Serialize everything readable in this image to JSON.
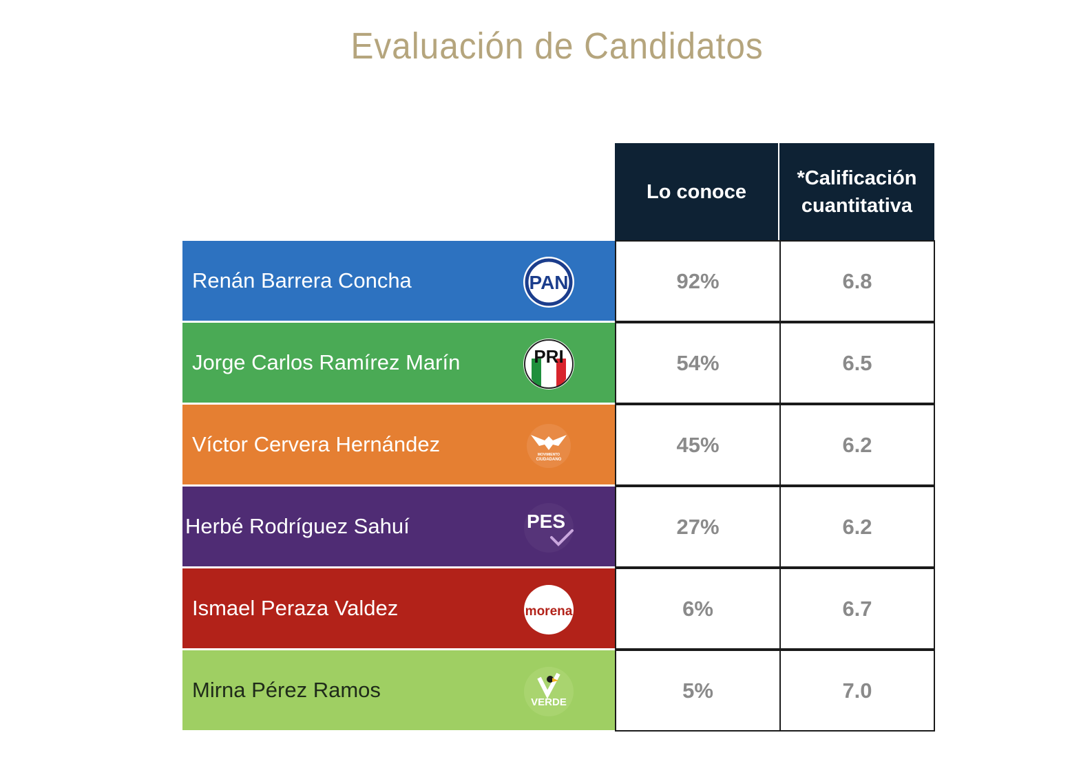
{
  "title": "Evaluación de Candidatos",
  "chart_data": {
    "type": "table",
    "title": "Evaluación de Candidatos",
    "columns": [
      "",
      "Lo conoce",
      "*Calificación cuantitativa"
    ],
    "header_line1": "*Calificación",
    "header_line2": "cuantitativa",
    "rows": [
      {
        "name": "Renán Barrera Concha",
        "party": "PAN",
        "logo_text": "PAN",
        "color": "#2d72c0",
        "text_color": "#ffffff",
        "conoce": "92%",
        "calificacion": "6.8"
      },
      {
        "name": "Jorge Carlos Ramírez Marín",
        "party": "PRI",
        "logo_text": "PRI",
        "color": "#4aaa55",
        "text_color": "#ffffff",
        "conoce": "54%",
        "calificacion": "6.5"
      },
      {
        "name": "Víctor Cervera Hernández",
        "party": "Movimiento Ciudadano",
        "logo_text": "MOVIMIENTO CIUDADANO",
        "color": "#e57f32",
        "text_color": "#ffffff",
        "conoce": "45%",
        "calificacion": "6.2"
      },
      {
        "name": "Herbé Rodríguez Sahuí",
        "party": "PES",
        "logo_text": "PES",
        "color": "#4f2c74",
        "text_color": "#ffffff",
        "conoce": "27%",
        "calificacion": "6.2"
      },
      {
        "name": "Ismael Peraza Valdez",
        "party": "morena",
        "logo_text": "morena",
        "color": "#b22219",
        "text_color": "#ffffff",
        "conoce": "6%",
        "calificacion": "6.7"
      },
      {
        "name": "Mirna Pérez Ramos",
        "party": "VERDE",
        "logo_text": "VERDE",
        "color": "#9fcf63",
        "text_color": "#1f2b1a",
        "conoce": "5%",
        "calificacion": "7.0"
      }
    ]
  }
}
